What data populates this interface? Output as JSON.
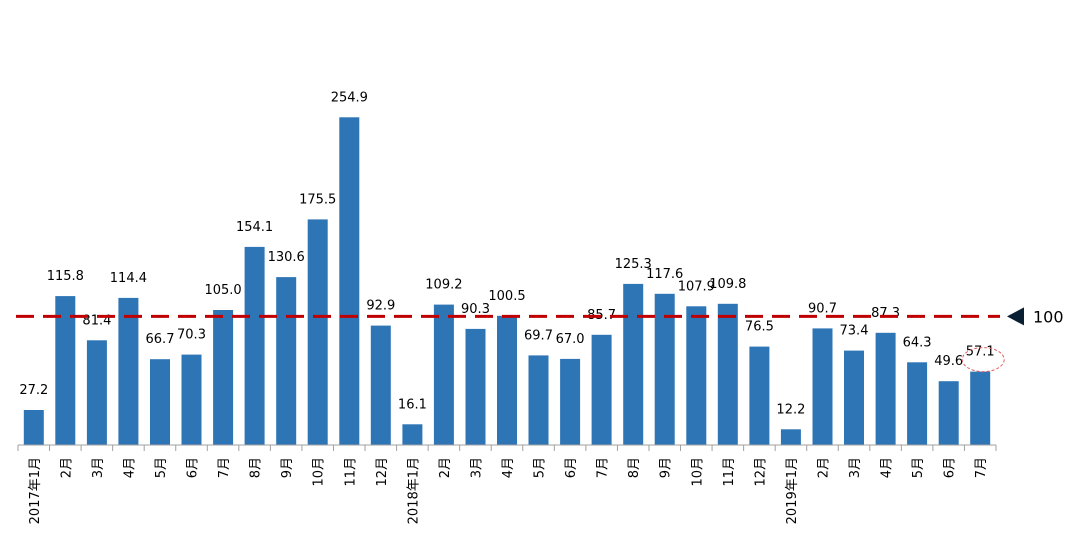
{
  "chart_data": {
    "type": "bar",
    "categories": [
      "2017年1月",
      "2月",
      "3月",
      "4月",
      "5月",
      "6月",
      "7月",
      "8月",
      "9月",
      "10月",
      "11月",
      "12月",
      "2018年1月",
      "2月",
      "3月",
      "4月",
      "5月",
      "6月",
      "7月",
      "8月",
      "9月",
      "10月",
      "11月",
      "12月",
      "2019年1月",
      "2月",
      "3月",
      "4月",
      "5月",
      "6月",
      "7月"
    ],
    "values": [
      27.2,
      115.8,
      81.4,
      114.4,
      66.7,
      70.3,
      105.0,
      154.1,
      130.6,
      175.5,
      254.9,
      92.9,
      16.1,
      109.2,
      90.3,
      100.5,
      69.7,
      67.0,
      85.7,
      125.3,
      117.6,
      107.9,
      109.8,
      76.5,
      12.2,
      90.7,
      73.4,
      87.3,
      64.3,
      49.6,
      57.1
    ],
    "value_labels": [
      "27.2",
      "115.8",
      "81.4",
      "114.4",
      "66.7",
      "70.3",
      "105.0",
      "154.1",
      "130.6",
      "175.5",
      "254.9",
      "92.9",
      "16.1",
      "109.2",
      "90.3",
      "100.5",
      "69.7",
      "67.0",
      "85.7",
      "125.3",
      "117.6",
      "107.9",
      "109.8",
      "76.5",
      "12.2",
      "90.7",
      "73.4",
      "87.3",
      "64.3",
      "49.6",
      "57.1"
    ],
    "reference_line": {
      "value": 100,
      "label": "100",
      "color": "#C00000",
      "style": "dashed"
    },
    "highlight_index": 30,
    "highlight_color": "#E06060",
    "bar_color": "#2E75B6",
    "ylim": [
      0,
      280
    ],
    "title": "",
    "xlabel": "",
    "ylabel": "",
    "grid": false,
    "legend": "none"
  }
}
